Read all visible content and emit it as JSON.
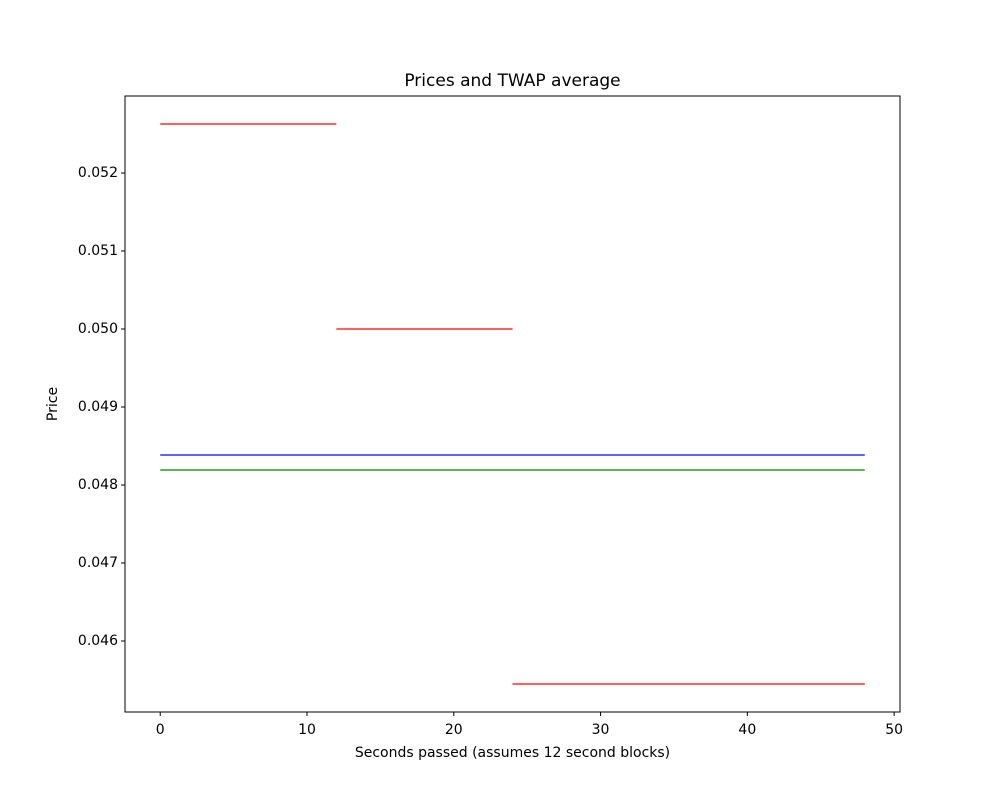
{
  "chart_data": {
    "type": "line",
    "title": "Prices and TWAP average",
    "x_label": "Seconds passed (assumes 12 second blocks)",
    "y_label": "Price",
    "series": [
      {
        "color": "#ff0000",
        "x": [
          0,
          12
        ],
        "values": [
          0.052628,
          0.052628
        ]
      },
      {
        "color": "#ff0000",
        "x": [
          12,
          24
        ],
        "values": [
          0.05,
          0.05
        ]
      },
      {
        "color": "#ff0000",
        "x": [
          24,
          48
        ],
        "values": [
          0.045449,
          0.045449
        ]
      },
      {
        "color": "#0000ff",
        "x": [
          0,
          48
        ],
        "values": [
          0.048385,
          0.048385
        ]
      },
      {
        "color": "#008000",
        "x": [
          0,
          48
        ],
        "values": [
          0.048192,
          0.048192
        ]
      }
    ],
    "xlim": [
      -2.4,
      50.4
    ],
    "xticks": [
      0,
      10,
      20,
      30,
      40,
      50
    ],
    "ylim": [
      0.04509,
      0.052987
    ],
    "yticks": [
      0.046,
      0.047,
      0.048,
      0.049,
      {
        "value": 0.05,
        "label": "0.050"
      },
      0.051,
      0.052
    ],
    "grid": false
  }
}
